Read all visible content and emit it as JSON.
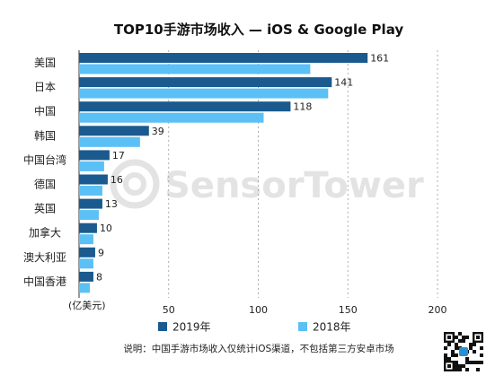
{
  "chart_data": {
    "type": "bar",
    "orientation": "horizontal",
    "title": "TOP10手游市场收入 — iOS & Google Play",
    "categories": [
      "美国",
      "日本",
      "中国",
      "韩国",
      "中国台湾",
      "德国",
      "英国",
      "加拿大",
      "澳大利亚",
      "中国香港"
    ],
    "series": [
      {
        "name": "2019年",
        "color": "#1a5a8f",
        "values": [
          161,
          141,
          118,
          39,
          17,
          16,
          13,
          10,
          9,
          8
        ]
      },
      {
        "name": "2018年",
        "color": "#5bc0f5",
        "values": [
          129,
          139,
          103,
          34,
          14,
          13,
          11,
          8,
          8,
          6
        ]
      }
    ],
    "data_labels_series": "2019年",
    "xlim": [
      0,
      200
    ],
    "xticks": [
      50,
      100,
      150,
      200
    ],
    "unit_label": "(亿美元)",
    "grid": "vertical-dashed",
    "legend_position": "bottom"
  },
  "watermark": {
    "text": "SensorTower",
    "icon": "sensor-tower-logo-icon"
  },
  "footnote": "说明：中国手游市场收入仅统计iOS渠道，不包括第三方安卓市场",
  "qr_code": {
    "icon": "qr-code-icon"
  }
}
